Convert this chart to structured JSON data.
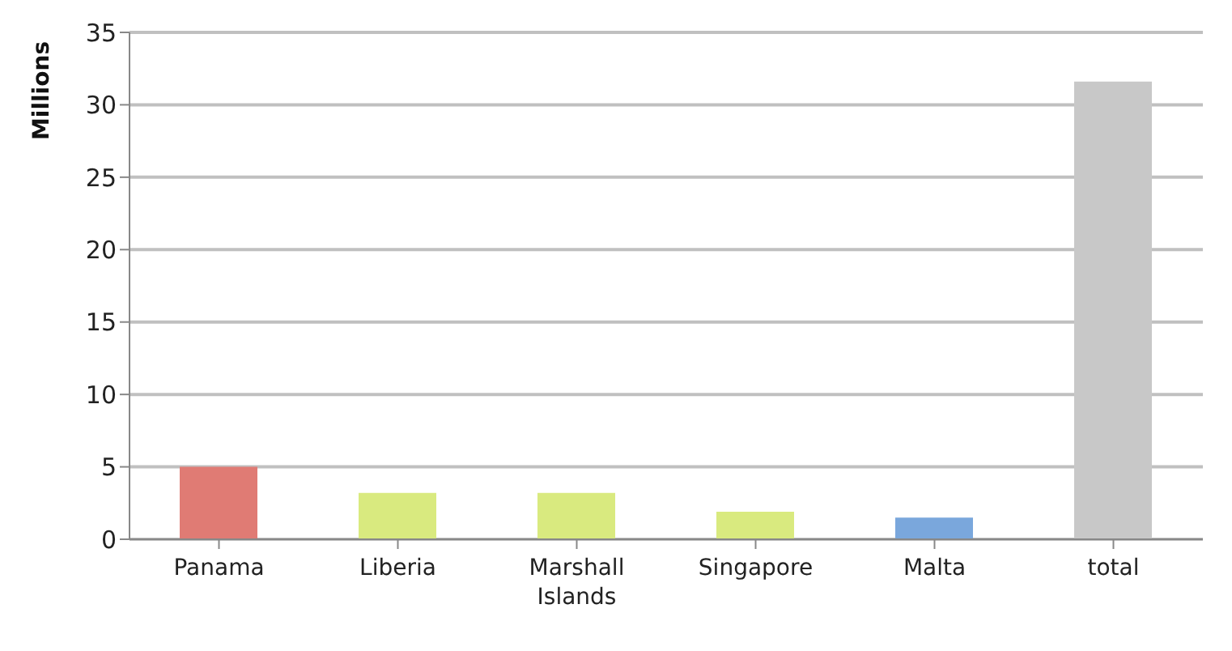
{
  "chart_data": {
    "type": "bar",
    "ylabel": "Millions",
    "categories": [
      "Panama",
      "Liberia",
      "Marshall Islands",
      "Singapore",
      "Malta",
      "total"
    ],
    "values": [
      5,
      3.2,
      3.2,
      1.9,
      1.5,
      31.6
    ],
    "colors": [
      "#e07b74",
      "#d9ea7f",
      "#d9ea7f",
      "#d9ea7f",
      "#7aa7dc",
      "#c8c8c8"
    ],
    "ylim": [
      0,
      35
    ],
    "yticks": [
      0,
      5,
      10,
      15,
      20,
      25,
      30,
      35
    ],
    "grid": "y"
  }
}
